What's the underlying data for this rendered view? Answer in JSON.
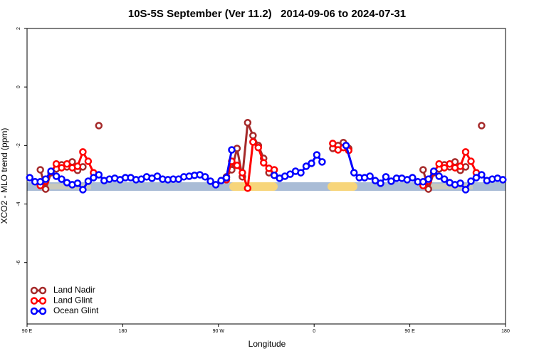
{
  "chart_data": {
    "type": "line",
    "title": "10S-5S September (Ver 11.2)   2014-09-06 to 2024-07-31",
    "x_label": "Longitude",
    "y_label": "XCO2 - MLO trend (ppm)",
    "xlim": [
      90,
      540
    ],
    "ylim": [
      -8.1,
      2
    ],
    "xticks": [
      {
        "value": 90,
        "label": "90 E"
      },
      180,
      {
        "value": 270,
        "label": "90 W"
      },
      {
        "value": 360,
        "label": "0"
      },
      {
        "value": 450,
        "label": "90 E"
      },
      {
        "value": 540,
        "label": "180"
      }
    ],
    "yticks": [
      2,
      0,
      -2,
      -4,
      -6
    ],
    "legend": "bottom-left",
    "series": [
      {
        "name": "Land Nadir",
        "color": "#a52a2a",
        "x": [
          102.5,
          107.5,
          112.5,
          117.5,
          122.5,
          127.5,
          132.5,
          137.5,
          142.5,
          147.5,
          157.5,
          167.5,
          277.5,
          282.5,
          287.5,
          292.5,
          297.5,
          302.5,
          307.5,
          312.5,
          317.5,
          347.5,
          377.5,
          382.5,
          387.5,
          392.5,
          432.5,
          462.5,
          467.5,
          472.5,
          477.5,
          482.5,
          487.5,
          492.5,
          497.5,
          502.5,
          507.5,
          517.5
        ],
        "values": [
          -2.83,
          -3.49,
          -2.93,
          -2.8,
          -2.66,
          -2.73,
          -2.56,
          -2.85,
          -2.73,
          null,
          -1.32,
          null,
          -3.07,
          -2.83,
          -2.1,
          -3.07,
          -1.22,
          -1.66,
          -2.0,
          -2.44,
          -2.93,
          null,
          -2.1,
          -2.0,
          -1.9,
          -2.1,
          null,
          -2.83,
          -3.49,
          -2.93,
          -2.8,
          -2.66,
          -2.73,
          -2.56,
          -2.85,
          -2.73,
          null,
          -1.32
        ]
      },
      {
        "name": "Land Glint",
        "color": "#ff0000",
        "x": [
          102.5,
          107.5,
          117.5,
          122.5,
          127.5,
          132.5,
          137.5,
          142.5,
          147.5,
          152.5,
          217.5,
          277.5,
          282.5,
          287.5,
          292.5,
          297.5,
          302.5,
          307.5,
          312.5,
          317.5,
          322.5,
          347.5,
          377.5,
          382.5,
          387.5,
          392.5,
          432.5,
          462.5,
          467.5,
          477.5,
          482.5,
          487.5,
          492.5,
          497.5,
          502.5,
          507.5,
          512.5
        ],
        "values": [
          -3.37,
          -3.22,
          -2.63,
          -2.76,
          -2.63,
          -2.76,
          -2.71,
          -2.22,
          -2.54,
          -2.93,
          null,
          -3.17,
          -2.54,
          -2.68,
          -2.93,
          -3.46,
          -1.88,
          -2.07,
          -2.59,
          -2.78,
          -2.83,
          null,
          -1.93,
          -2.15,
          -2.07,
          -2.17,
          null,
          -3.37,
          -3.22,
          -2.63,
          -2.76,
          -2.63,
          -2.76,
          -2.71,
          -2.22,
          -2.54,
          -2.93
        ]
      },
      {
        "name": "Ocean Glint",
        "color": "#0000ff",
        "x": [
          92.5,
          97.5,
          102.5,
          107.5,
          112.5,
          117.5,
          122.5,
          127.5,
          132.5,
          137.5,
          142.5,
          147.5,
          152.5,
          157.5,
          162.5,
          167.5,
          172.5,
          177.5,
          182.5,
          187.5,
          192.5,
          197.5,
          202.5,
          207.5,
          212.5,
          217.5,
          222.5,
          227.5,
          232.5,
          237.5,
          242.5,
          247.5,
          252.5,
          257.5,
          262.5,
          267.5,
          272.5,
          277.5,
          282.5,
          302.5,
          322.5,
          327.5,
          332.5,
          337.5,
          342.5,
          347.5,
          352.5,
          357.5,
          362.5,
          367.5,
          372.5,
          390,
          397.5,
          402.5,
          407.5,
          412.5,
          417.5,
          422.5,
          427.5,
          432.5,
          437.5,
          442.5,
          447.5,
          452.5,
          457.5,
          462.5,
          467.5,
          472.5,
          477.5,
          482.5,
          487.5,
          492.5,
          497.5,
          502.5,
          507.5,
          512.5,
          517.5,
          522.5,
          527.5,
          532.5,
          537.5
        ],
        "values": [
          -3.1,
          -3.24,
          -3.24,
          -3.15,
          -2.88,
          -3.05,
          -3.15,
          -3.27,
          -3.34,
          -3.29,
          -3.51,
          -3.22,
          -3.1,
          -3.0,
          -3.2,
          -3.15,
          -3.12,
          -3.17,
          -3.1,
          -3.1,
          -3.17,
          -3.15,
          -3.07,
          -3.12,
          -3.05,
          -3.15,
          -3.17,
          -3.15,
          -3.15,
          -3.07,
          -3.05,
          -3.02,
          -3.0,
          -3.07,
          -3.22,
          -3.34,
          -3.2,
          -3.1,
          -2.15,
          null,
          -3.02,
          -3.12,
          -3.05,
          -2.98,
          -2.88,
          -2.93,
          -2.71,
          -2.61,
          -2.32,
          -2.56,
          null,
          -2.0,
          -2.93,
          -3.1,
          -3.1,
          -3.05,
          -3.2,
          -3.29,
          -3.07,
          -3.22,
          -3.12,
          -3.12,
          -3.17,
          -3.1,
          -3.24,
          -3.24,
          -3.15,
          -2.88,
          -3.05,
          -3.15,
          -3.27,
          -3.34,
          -3.29,
          -3.51,
          -3.22,
          -3.1,
          -3.0,
          -3.2,
          -3.15,
          -3.12,
          -3.17
        ]
      }
    ]
  }
}
